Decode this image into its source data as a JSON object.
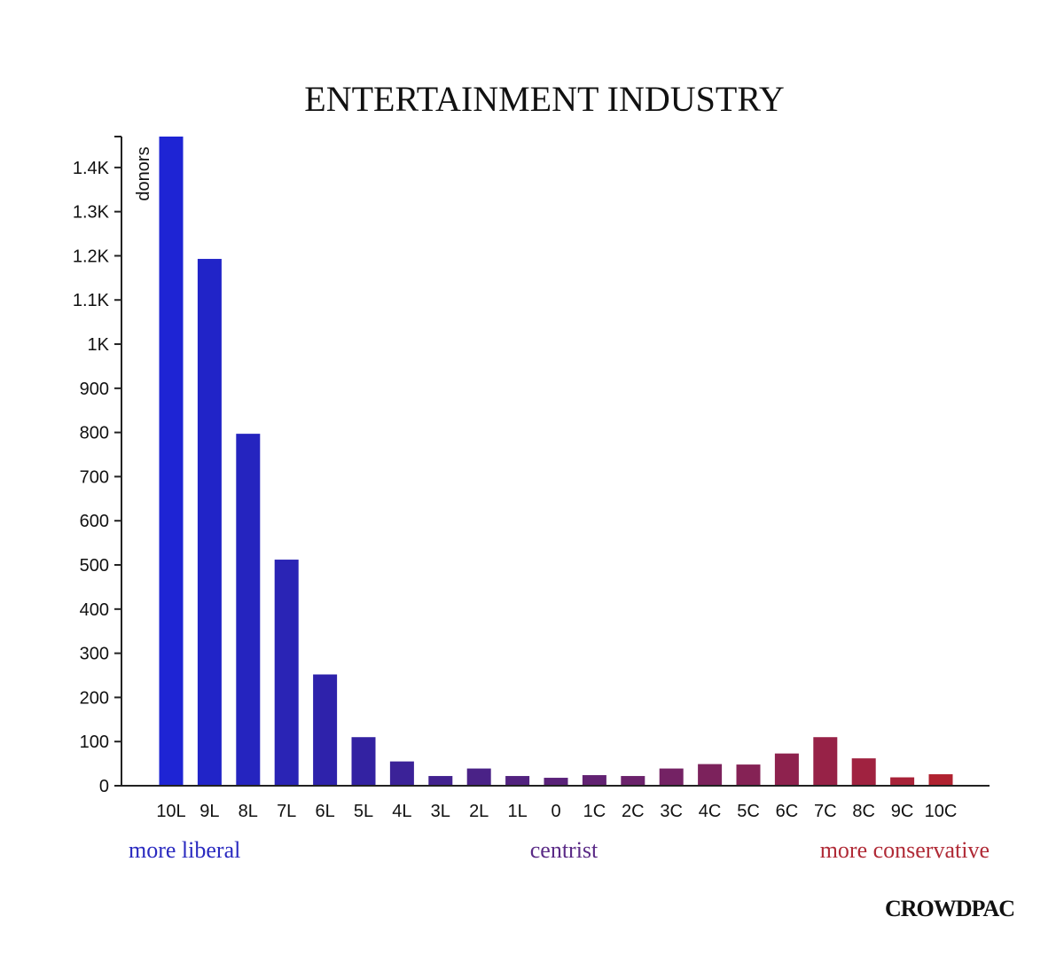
{
  "chart_data": {
    "type": "bar",
    "title": "ENTERTAINMENT INDUSTRY",
    "xlabel": "",
    "ylabel": "donors",
    "ylim": [
      0,
      1470
    ],
    "yticks": [
      {
        "value": 0,
        "label": "0"
      },
      {
        "value": 100,
        "label": "100"
      },
      {
        "value": 200,
        "label": "200"
      },
      {
        "value": 300,
        "label": "300"
      },
      {
        "value": 400,
        "label": "400"
      },
      {
        "value": 500,
        "label": "500"
      },
      {
        "value": 600,
        "label": "600"
      },
      {
        "value": 700,
        "label": "700"
      },
      {
        "value": 800,
        "label": "800"
      },
      {
        "value": 900,
        "label": "900"
      },
      {
        "value": 1000,
        "label": "1K"
      },
      {
        "value": 1100,
        "label": "1.1K"
      },
      {
        "value": 1200,
        "label": "1.2K"
      },
      {
        "value": 1300,
        "label": "1.3K"
      },
      {
        "value": 1400,
        "label": "1.4K"
      }
    ],
    "categories": [
      "10L",
      "9L",
      "8L",
      "7L",
      "6L",
      "5L",
      "4L",
      "3L",
      "2L",
      "1L",
      "0",
      "1C",
      "2C",
      "3C",
      "4C",
      "5C",
      "6C",
      "7C",
      "8C",
      "9C",
      "10C"
    ],
    "values": [
      1470,
      1193,
      797,
      512,
      252,
      110,
      55,
      22,
      39,
      22,
      18,
      24,
      22,
      39,
      49,
      48,
      73,
      110,
      62,
      19,
      26
    ],
    "colors": [
      "#1e24d4",
      "#2124c8",
      "#2524bf",
      "#2a24b5",
      "#2e22ab",
      "#3322a2",
      "#3b2298",
      "#42228f",
      "#4a2287",
      "#52227f",
      "#5a2279",
      "#622272",
      "#6b226b",
      "#742264",
      "#7c225c",
      "#852255",
      "#8e224e",
      "#972247",
      "#a02240",
      "#a82238",
      "#b02230"
    ],
    "grid": false,
    "legend": "none",
    "region_labels": {
      "left": {
        "text": "more liberal",
        "color": "#2a2ac0"
      },
      "center": {
        "text": "centrist",
        "color": "#5a2a86"
      },
      "right": {
        "text": "more conservative",
        "color": "#b02a36"
      }
    }
  },
  "brand": "CROWDPAC"
}
